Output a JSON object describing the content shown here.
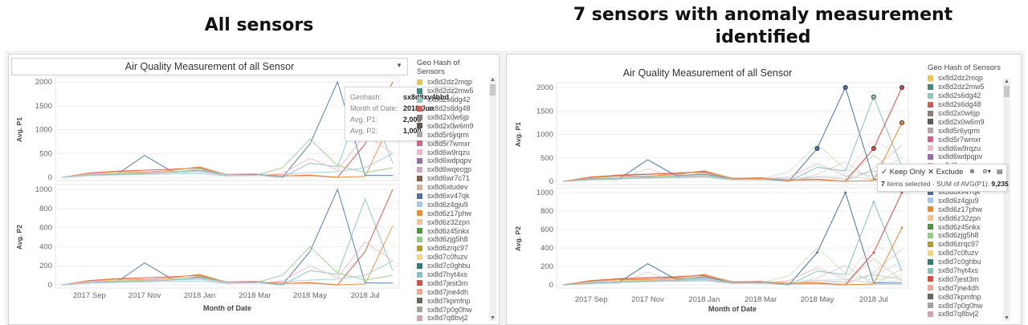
{
  "headings": {
    "left": "All sensors",
    "right": "7 sensors with anomaly measurement identified"
  },
  "left_panel": {
    "dropdown_title": "Air Quality Measurement of all Sensor",
    "tooltip": {
      "geohash_label": "Geohash:",
      "geohash_value": "sx8d8xv4bbd",
      "month_label": "Month of Date:",
      "month_value": "2018 Jun",
      "p1_label": "Avg. P1:",
      "p1_value": "2,000",
      "p2_label": "Avg. P2:",
      "p2_value": "1,000"
    }
  },
  "right_panel": {
    "chart_title": "Air Quality Measurement of all Sensor",
    "action_bar": {
      "keep_only": "Keep Only",
      "exclude": "Exclude",
      "selected_count": "7",
      "selected_text": "items selected",
      "sum_label": "SUM of AVG(P1):",
      "sum_value": "9,235"
    }
  },
  "legend": {
    "title": "Geo Hash  of Sensors",
    "items": [
      {
        "name": "sx8d2dz2mqp",
        "color": "#f0c24b"
      },
      {
        "name": "sx8d2dz2mw5",
        "color": "#3d8c84"
      },
      {
        "name": "sx8d2s6dg42",
        "color": "#8cc8c0"
      },
      {
        "name": "sx8d2s6dg48",
        "color": "#e2574c"
      },
      {
        "name": "sx8d2x0w6jp",
        "color": "#8a7f7a"
      },
      {
        "name": "sx8d2x0w6m9",
        "color": "#5e5a58"
      },
      {
        "name": "sx8d5r6yqrm",
        "color": "#b0a8a0"
      },
      {
        "name": "sx8d5r7wmxr",
        "color": "#d95f87"
      },
      {
        "name": "sx8d6w9rqzu",
        "color": "#f7b6c8"
      },
      {
        "name": "sx8d6wdpqpv",
        "color": "#9b6bae"
      },
      {
        "name": "sx8d6wqecgp",
        "color": "#cfa6c8"
      },
      {
        "name": "sx8d6wr7c71",
        "color": "#8e5a44"
      },
      {
        "name": "sx8d6xtudev",
        "color": "#d8b09a"
      },
      {
        "name": "sx8d6xv47qk",
        "color": "#4a72a8"
      },
      {
        "name": "sx8d6z4gju9",
        "color": "#a3c8ea"
      },
      {
        "name": "sx8d6z17phw",
        "color": "#f08a2a"
      },
      {
        "name": "sx8d6z32zpn",
        "color": "#f8c38a"
      },
      {
        "name": "sx8d6z45nkx",
        "color": "#4b9a3a"
      },
      {
        "name": "sx8d6zjg5h8",
        "color": "#8fd07e"
      },
      {
        "name": "sx8d6zrqc97",
        "color": "#b89a2c"
      },
      {
        "name": "sx8d7c0fuzv",
        "color": "#f3d57a"
      },
      {
        "name": "sx8d7c0ghbu",
        "color": "#2f7d78"
      },
      {
        "name": "sx8d7hyt4xs",
        "color": "#86c3bb"
      },
      {
        "name": "sx8d7jest3m",
        "color": "#e04a3f"
      },
      {
        "name": "sx8d7jne4dh",
        "color": "#f4a58f"
      },
      {
        "name": "sx8d7kpmfnp",
        "color": "#6b6360"
      },
      {
        "name": "sx8d7p0g0hw",
        "color": "#a7a19c"
      },
      {
        "name": "sx8d7q8bvj2",
        "color": "#d6a0b4"
      }
    ]
  },
  "chart_data": [
    {
      "type": "line",
      "title": "Air Quality Measurement of all Sensor",
      "xlabel": "Month of Date",
      "x": [
        "2017 Aug",
        "2017 Sep",
        "2017 Oct",
        "2017 Nov",
        "2017 Dec",
        "2018 Jan",
        "2018 Feb",
        "2018 Mar",
        "2018 Apr",
        "2018 May",
        "2018 Jun",
        "2018 Jul",
        "2018 Aug"
      ],
      "x_ticks": [
        "2017 Sep",
        "2017 Nov",
        "2018 Jan",
        "2018 Mar",
        "2018 May",
        "2018 Jul"
      ],
      "panes": [
        {
          "ylabel": "Avg. P1",
          "ylim": [
            0,
            2000
          ],
          "y_ticks": [
            0,
            500,
            1000,
            1500,
            2000
          ]
        },
        {
          "ylabel": "Avg. P2",
          "ylim": [
            0,
            1000
          ],
          "y_ticks": [
            0,
            200,
            400,
            600,
            800,
            1000
          ]
        }
      ],
      "series": [
        {
          "color": "#4a72a8",
          "p1": [
            0,
            50,
            60,
            460,
            120,
            150,
            60,
            60,
            0,
            700,
            2000,
            40,
            40
          ],
          "p2": [
            0,
            20,
            30,
            230,
            60,
            80,
            30,
            30,
            0,
            350,
            1000,
            20,
            20
          ]
        },
        {
          "color": "#86c3bb",
          "p1": [
            0,
            40,
            60,
            80,
            100,
            120,
            40,
            50,
            0,
            300,
            220,
            1800,
            300
          ],
          "p2": [
            0,
            20,
            30,
            40,
            50,
            60,
            20,
            25,
            0,
            150,
            110,
            900,
            150
          ]
        },
        {
          "color": "#e04a3f",
          "p1": [
            0,
            90,
            130,
            150,
            170,
            200,
            60,
            70,
            30,
            40,
            0,
            700,
            2000
          ],
          "p2": [
            0,
            45,
            65,
            75,
            85,
            100,
            30,
            35,
            15,
            20,
            0,
            350,
            1000
          ]
        },
        {
          "color": "#f08a2a",
          "p1": [
            0,
            80,
            120,
            110,
            150,
            220,
            50,
            60,
            30,
            50,
            0,
            20,
            1250
          ],
          "p2": [
            0,
            40,
            60,
            55,
            75,
            110,
            25,
            30,
            15,
            25,
            0,
            10,
            620
          ]
        },
        {
          "color": "#8fd07e",
          "p1": [
            0,
            50,
            80,
            90,
            100,
            180,
            60,
            40,
            200,
            800,
            250,
            100,
            200
          ],
          "p2": [
            0,
            25,
            40,
            45,
            50,
            90,
            30,
            20,
            100,
            400,
            125,
            50,
            100
          ]
        },
        {
          "color": "#f7b6c8",
          "p1": [
            0,
            70,
            90,
            100,
            120,
            140,
            50,
            40,
            80,
            400,
            150,
            900,
            500
          ],
          "p2": [
            0,
            35,
            45,
            50,
            60,
            70,
            25,
            20,
            40,
            200,
            75,
            450,
            250
          ]
        },
        {
          "color": "#a3c8ea",
          "p1": [
            0,
            40,
            50,
            60,
            70,
            80,
            30,
            40,
            60,
            100,
            120,
            200,
            500
          ],
          "p2": [
            0,
            20,
            25,
            30,
            35,
            40,
            15,
            20,
            30,
            50,
            60,
            100,
            250
          ]
        }
      ],
      "highlighted_series": 7
    }
  ]
}
